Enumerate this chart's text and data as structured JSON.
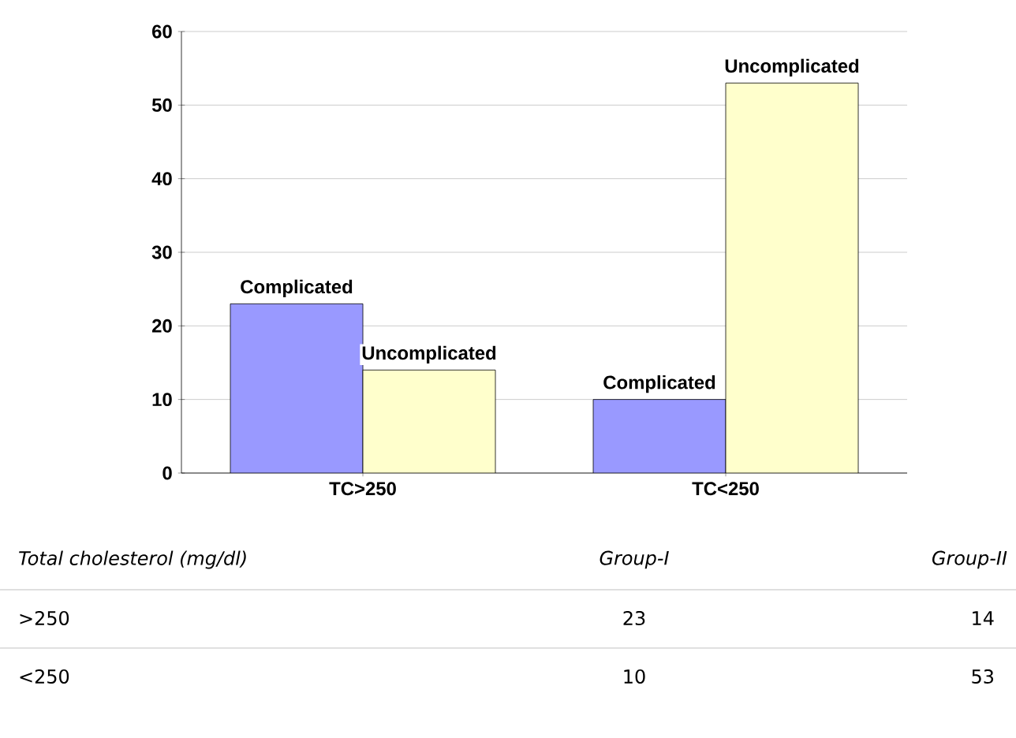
{
  "chart_data": {
    "type": "bar",
    "categories": [
      "TC>250",
      "TC<250"
    ],
    "series": [
      {
        "name": "Complicated",
        "color": "#9999ff",
        "values": [
          23,
          10
        ]
      },
      {
        "name": "Uncomplicated",
        "color": "#ffffcc",
        "values": [
          14,
          53
        ]
      }
    ],
    "ylim": [
      0,
      60
    ],
    "yticks": [
      0,
      10,
      20,
      30,
      40,
      50,
      60
    ],
    "grid": "y",
    "annotations": [
      "Total cholesterol (mg/dl)",
      "Group-I",
      "Group-II",
      ">250",
      "23",
      "14",
      "<250",
      "10",
      "53"
    ]
  }
}
